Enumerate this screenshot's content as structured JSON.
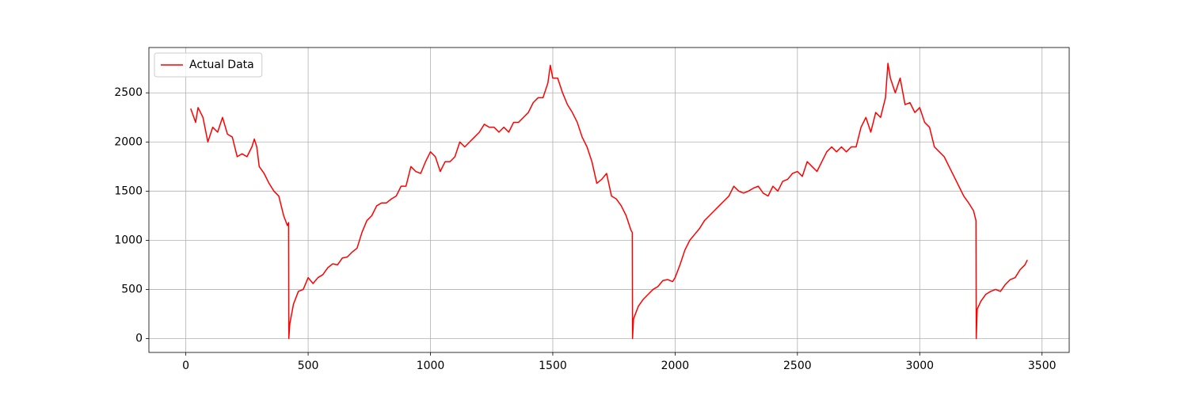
{
  "chart_data": {
    "type": "line",
    "x": [
      20,
      40,
      50,
      70,
      90,
      110,
      130,
      150,
      170,
      190,
      210,
      230,
      250,
      270,
      280,
      290,
      300,
      320,
      340,
      360,
      380,
      400,
      415,
      420,
      421,
      425,
      440,
      460,
      480,
      500,
      520,
      540,
      560,
      580,
      600,
      620,
      640,
      660,
      680,
      700,
      720,
      740,
      760,
      780,
      800,
      820,
      840,
      860,
      880,
      900,
      920,
      940,
      960,
      980,
      1000,
      1020,
      1040,
      1060,
      1080,
      1100,
      1120,
      1140,
      1160,
      1180,
      1200,
      1220,
      1240,
      1260,
      1280,
      1300,
      1320,
      1340,
      1360,
      1380,
      1400,
      1420,
      1440,
      1460,
      1480,
      1490,
      1500,
      1520,
      1540,
      1560,
      1580,
      1600,
      1620,
      1640,
      1660,
      1680,
      1700,
      1720,
      1740,
      1760,
      1780,
      1800,
      1820,
      1825,
      1826,
      1830,
      1850,
      1870,
      1890,
      1910,
      1930,
      1950,
      1970,
      1990,
      2000,
      2020,
      2040,
      2060,
      2080,
      2100,
      2120,
      2140,
      2160,
      2180,
      2200,
      2220,
      2240,
      2260,
      2280,
      2300,
      2320,
      2340,
      2360,
      2380,
      2400,
      2420,
      2440,
      2460,
      2480,
      2500,
      2520,
      2540,
      2560,
      2580,
      2600,
      2620,
      2640,
      2660,
      2680,
      2700,
      2720,
      2740,
      2760,
      2780,
      2800,
      2820,
      2840,
      2860,
      2870,
      2880,
      2900,
      2920,
      2940,
      2960,
      2980,
      3000,
      3020,
      3040,
      3060,
      3080,
      3100,
      3120,
      3140,
      3160,
      3180,
      3200,
      3220,
      3230,
      3231,
      3235,
      3250,
      3270,
      3290,
      3310,
      3330,
      3350,
      3370,
      3390,
      3410,
      3430,
      3440
    ],
    "series": [
      {
        "name": "Actual Data",
        "color": "#ff0000",
        "values": [
          2340,
          2200,
          2350,
          2250,
          2000,
          2150,
          2100,
          2250,
          2080,
          2050,
          1850,
          1880,
          1850,
          1950,
          2030,
          1950,
          1750,
          1680,
          1580,
          1500,
          1450,
          1250,
          1150,
          1180,
          0,
          150,
          350,
          480,
          500,
          620,
          560,
          620,
          650,
          720,
          760,
          750,
          820,
          830,
          880,
          920,
          1080,
          1200,
          1250,
          1350,
          1380,
          1380,
          1420,
          1450,
          1550,
          1550,
          1750,
          1700,
          1680,
          1800,
          1900,
          1850,
          1700,
          1800,
          1800,
          1850,
          2000,
          1950,
          2000,
          2050,
          2100,
          2180,
          2150,
          2150,
          2100,
          2150,
          2100,
          2200,
          2200,
          2250,
          2300,
          2400,
          2450,
          2450,
          2600,
          2780,
          2650,
          2650,
          2500,
          2380,
          2300,
          2200,
          2050,
          1950,
          1800,
          1580,
          1620,
          1680,
          1450,
          1420,
          1350,
          1250,
          1100,
          1080,
          0,
          200,
          330,
          400,
          450,
          500,
          530,
          590,
          600,
          580,
          620,
          750,
          900,
          1000,
          1060,
          1120,
          1200,
          1250,
          1300,
          1350,
          1400,
          1450,
          1550,
          1500,
          1480,
          1500,
          1530,
          1550,
          1480,
          1450,
          1550,
          1500,
          1600,
          1620,
          1680,
          1700,
          1650,
          1800,
          1750,
          1700,
          1800,
          1900,
          1950,
          1900,
          1950,
          1900,
          1950,
          1950,
          2150,
          2250,
          2100,
          2300,
          2250,
          2450,
          2800,
          2650,
          2500,
          2650,
          2380,
          2400,
          2300,
          2350,
          2200,
          2150,
          1950,
          1900,
          1850,
          1750,
          1650,
          1550,
          1450,
          1380,
          1300,
          1200,
          0,
          300,
          380,
          450,
          480,
          500,
          480,
          550,
          600,
          620,
          700,
          750,
          800
        ]
      }
    ],
    "xlim": [
      -151,
      3611
    ],
    "xticks": [
      0,
      500,
      1000,
      1500,
      2000,
      2500,
      3000,
      3500
    ],
    "ylim": [
      -141,
      2961
    ],
    "yticks": [
      0,
      500,
      1000,
      1500,
      2000,
      2500
    ],
    "grid": true,
    "legend": "upper left"
  }
}
